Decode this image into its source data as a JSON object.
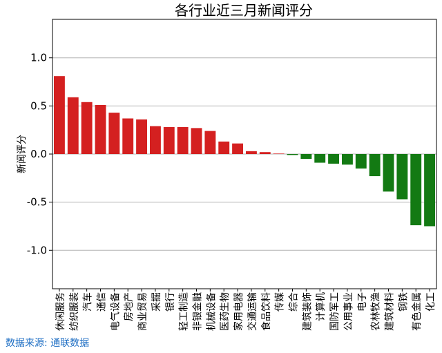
{
  "chart_data": {
    "type": "bar",
    "title": "各行业近三月新闻评分",
    "ylabel": "新闻评分",
    "xlabel": "",
    "ylim": [
      -1.4,
      1.4
    ],
    "yticks": [
      1.0,
      0.5,
      0.0,
      -0.5,
      -1.0
    ],
    "ytick_labels": [
      "1.0",
      "0.5",
      "0.0",
      "-0.5",
      "-1.0"
    ],
    "grid": true,
    "positive_color": "#d42020",
    "negative_color": "#137a13",
    "categories": [
      "休闲服务",
      "纺织服装",
      "汽车",
      "通信",
      "电气设备",
      "房地产",
      "商业贸易",
      "采掘",
      "银行",
      "轻工制造",
      "非银金融",
      "机械设备",
      "医药生物",
      "家用电器",
      "交通运输",
      "食品饮料",
      "传媒",
      "综合",
      "建筑装饰",
      "计算机",
      "国防军工",
      "公用事业",
      "电子",
      "农林牧渔",
      "建筑材料",
      "钢铁",
      "有色金属",
      "化工"
    ],
    "values": [
      0.81,
      0.59,
      0.54,
      0.51,
      0.43,
      0.37,
      0.36,
      0.29,
      0.28,
      0.28,
      0.27,
      0.24,
      0.13,
      0.11,
      0.03,
      0.02,
      0.005,
      -0.01,
      -0.05,
      -0.09,
      -0.1,
      -0.11,
      -0.15,
      -0.23,
      -0.39,
      -0.47,
      -0.74,
      -0.75
    ]
  },
  "source_text": "数据来源: 通联数据"
}
